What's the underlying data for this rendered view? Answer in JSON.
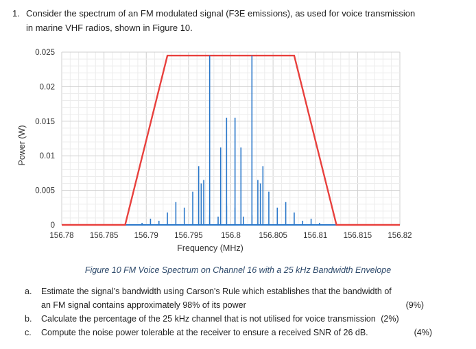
{
  "question": {
    "number": "1.",
    "line1": "Consider the spectrum of an FM modulated signal (F3E emissions), as used for voice transmission",
    "line2": "in marine VHF radios,  shown in Figure 10."
  },
  "chart_data": {
    "type": "bar",
    "xlabel": "Frequency (MHz)",
    "ylabel": "Power (W)",
    "xlim": [
      156.78,
      156.82
    ],
    "ylim": [
      0,
      0.025
    ],
    "x_ticks": [
      "156.78",
      "156.785",
      "156.79",
      "156.795",
      "156.8",
      "156.805",
      "156.81",
      "156.815",
      "156.82"
    ],
    "y_ticks": [
      "0",
      "0.005",
      "0.01",
      "0.015",
      "0.02",
      "0.025"
    ],
    "grid": true,
    "colors": {
      "spectrum": "#2a77c9",
      "envelope": "#e8403d",
      "grid": "#d5d5d5"
    },
    "spectral_lines": {
      "x": [
        156.7895,
        156.7905,
        156.7915,
        156.7925,
        156.7935,
        156.7945,
        156.7955,
        156.7965,
        156.7975,
        156.7985,
        156.7995,
        156.8005,
        156.8015,
        156.8025,
        156.8035,
        156.8045,
        156.8055,
        156.8065,
        156.8075,
        156.8085,
        156.8095,
        156.8105
      ],
      "power": [
        0.0003,
        0.0009,
        0.0006,
        0.0018,
        0.0033,
        0.0025,
        0.0048,
        0.006,
        0.0014,
        0.0012,
        0.0028,
        0.0025,
        0.0012,
        0.0014,
        0.006,
        0.0048,
        0.0025,
        0.0033,
        0.0018,
        0.0006,
        0.0009,
        0.0003
      ]
    },
    "spectral_lines_2": {
      "x": [
        156.7962,
        156.7968,
        156.7975,
        156.7988,
        156.7995,
        156.8005,
        156.8012,
        156.8025,
        156.8032,
        156.8038
      ],
      "power": [
        0.0085,
        0.0065,
        0.0245,
        0.0112,
        0.0155,
        0.0155,
        0.0112,
        0.0245,
        0.0065,
        0.0085
      ]
    },
    "envelope": {
      "x": [
        156.78,
        156.7875,
        156.7925,
        156.8075,
        156.8125,
        156.82
      ],
      "y": [
        0,
        0,
        0.0245,
        0.0245,
        0,
        0
      ]
    }
  },
  "caption": "Figure 10 FM Voice Spectrum on Channel 16 with a 25 kHz Bandwidth Envelope",
  "parts": [
    {
      "letter": "a.",
      "text1": "Estimate the signal’s bandwidth using Carson's Rule which establishes that the bandwidth of",
      "text2": "an FM signal contains approximately 98% of its power",
      "marks": "(9%)"
    },
    {
      "letter": "b.",
      "text": "Calculate the percentage of the 25 kHz channel that is not utilised for voice transmission",
      "marks": "(2%)"
    },
    {
      "letter": "c.",
      "text": "Compute the noise power tolerable at the receiver to ensure a received SNR of 26 dB.",
      "marks": "(4%)"
    }
  ]
}
